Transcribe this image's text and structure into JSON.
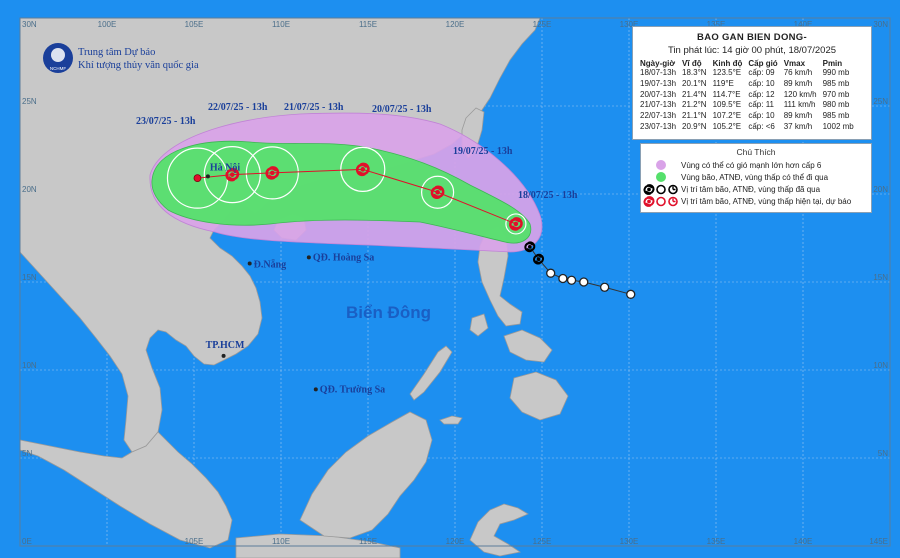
{
  "header": {
    "title": "BAO GAN BIEN DONG-",
    "issued": "Tin phát lúc: 14 giờ 00 phút, 18/07/2025",
    "columns": [
      "Ngày-giờ",
      "Vĩ độ",
      "Kinh độ",
      "Cấp gió",
      "Vmax",
      "Pmin"
    ]
  },
  "forecast": [
    {
      "time": "18/07-13h",
      "lat": "18.3°N",
      "lon": "123.5°E",
      "level": "cấp: 09",
      "vmax": "76 km/h",
      "pmin": "990 mb"
    },
    {
      "time": "19/07-13h",
      "lat": "20.1°N",
      "lon": "119°E",
      "level": "cấp: 10",
      "vmax": "89 km/h",
      "pmin": "985 mb"
    },
    {
      "time": "20/07-13h",
      "lat": "21.4°N",
      "lon": "114.7°E",
      "level": "cấp: 12",
      "vmax": "120 km/h",
      "pmin": "970 mb"
    },
    {
      "time": "21/07-13h",
      "lat": "21.2°N",
      "lon": "109.5°E",
      "level": "cấp: 11",
      "vmax": "111 km/h",
      "pmin": "980 mb"
    },
    {
      "time": "22/07-13h",
      "lat": "21.1°N",
      "lon": "107.2°E",
      "level": "cấp: 10",
      "vmax": "89 km/h",
      "pmin": "985 mb"
    },
    {
      "time": "23/07-13h",
      "lat": "20.9°N",
      "lon": "105.2°E",
      "level": "cấp: <6",
      "vmax": "37 km/h",
      "pmin": "1002 mb"
    }
  ],
  "legend": {
    "title": "Chú Thích",
    "items": [
      {
        "text": "Vùng có thể có gió mạnh lớn hơn cấp 6",
        "color": "#d9a3e8"
      },
      {
        "text": "Vùng bão, ATNĐ, vùng thấp có thể đi qua",
        "color": "#55e06b"
      },
      {
        "text": "Vị trí tâm bão, ATNĐ, vùng thấp đã qua",
        "color": "#000000"
      },
      {
        "text": "Vị trí tâm bão, ATNĐ, vùng thấp hiện tại, dự báo",
        "color": "#e0102a"
      }
    ]
  },
  "organization": {
    "line1": "Trung tâm Dự báo",
    "line2": "Khí tượng thủy văn quốc gia",
    "logo_text": "NCHMF"
  },
  "map": {
    "lon_min": 95,
    "lon_max": 145,
    "lat_min": 0,
    "lat_max": 30,
    "lon_ticks_top": [
      "100E",
      "105E",
      "110E",
      "115E",
      "120E",
      "125E",
      "130E",
      "135E",
      "140E"
    ],
    "lon_ticks_bottom": [
      "105E",
      "110E",
      "115E",
      "120E",
      "125E",
      "130E",
      "135E",
      "140E"
    ],
    "lat_ticks": [
      "25N",
      "20N",
      "15N",
      "10N",
      "5N"
    ],
    "corner_labels": {
      "top_left": "30N",
      "top_right": "30N",
      "bottom_left": "0E",
      "bottom_right": "145E"
    },
    "sea_label": "Biển Đông",
    "places": [
      {
        "name": "Hà Nội",
        "lon": 105.8,
        "lat": 21.0
      },
      {
        "name": "Đ.Nẵng",
        "lon": 108.2,
        "lat": 16.05
      },
      {
        "name": "QĐ. Hoàng Sa",
        "lon": 111.6,
        "lat": 16.4
      },
      {
        "name": "TP.HCM",
        "lon": 106.7,
        "lat": 10.8
      },
      {
        "name": "QĐ. Trường Sa",
        "lon": 112.0,
        "lat": 8.9
      }
    ],
    "forecast_labels": [
      "18/07/25 - 13h",
      "19/07/25 - 13h",
      "20/07/25 - 13h",
      "21/07/25 - 13h",
      "22/07/25 - 13h",
      "23/07/25 - 13h"
    ],
    "past_track": [
      {
        "lon": 130.1,
        "lat": 14.3
      },
      {
        "lon": 128.6,
        "lat": 14.7
      },
      {
        "lon": 127.4,
        "lat": 15.0
      },
      {
        "lon": 126.7,
        "lat": 15.1
      },
      {
        "lon": 126.2,
        "lat": 15.2
      },
      {
        "lon": 125.5,
        "lat": 15.5
      },
      {
        "lon": 124.8,
        "lat": 16.3
      },
      {
        "lon": 124.3,
        "lat": 17.0
      }
    ]
  }
}
